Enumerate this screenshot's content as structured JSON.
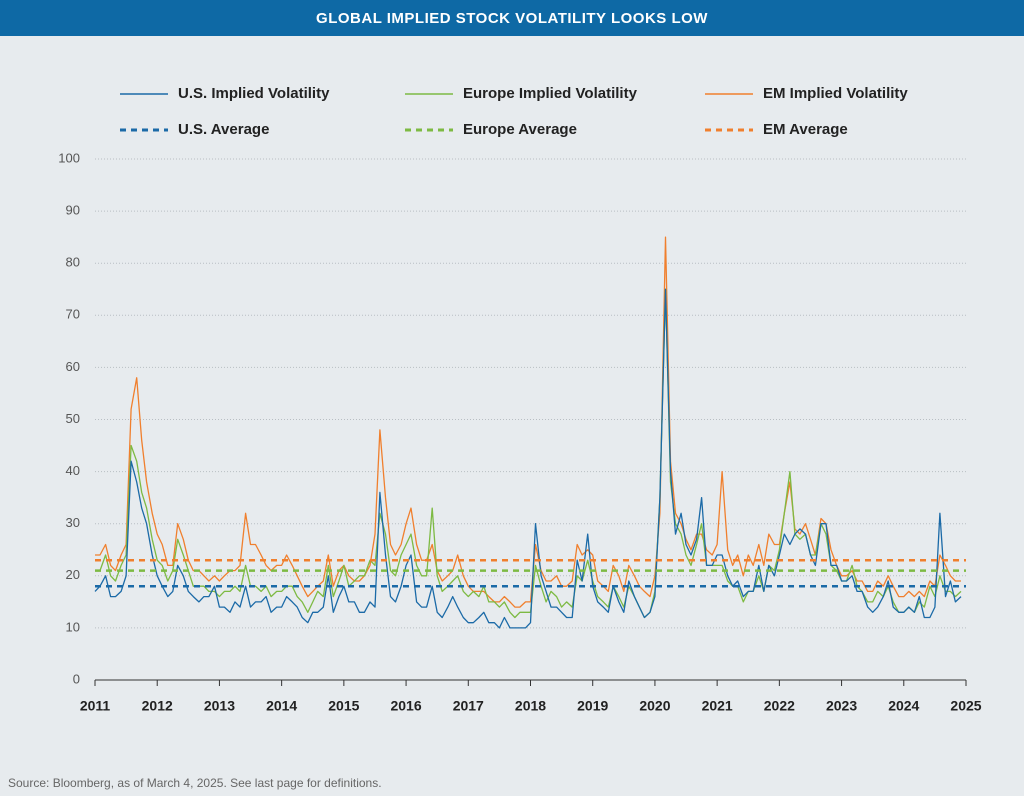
{
  "chart_data": {
    "type": "line",
    "title": "GLOBAL IMPLIED STOCK VOLATILITY LOOKS LOW",
    "source": "Source: Bloomberg, as of March 4, 2025. See last page for definitions.",
    "xlim": [
      2011,
      2025
    ],
    "xticks": [
      2011,
      2012,
      2013,
      2014,
      2015,
      2016,
      2017,
      2018,
      2019,
      2020,
      2021,
      2022,
      2023,
      2024,
      2025
    ],
    "ylim": [
      0,
      100
    ],
    "yticks": [
      0,
      10,
      20,
      30,
      40,
      50,
      60,
      70,
      80,
      90,
      100
    ],
    "grid": true,
    "x": [
      2011.0,
      2011.08,
      2011.17,
      2011.25,
      2011.33,
      2011.42,
      2011.5,
      2011.58,
      2011.67,
      2011.75,
      2011.83,
      2011.92,
      2012.0,
      2012.08,
      2012.17,
      2012.25,
      2012.33,
      2012.42,
      2012.5,
      2012.58,
      2012.67,
      2012.75,
      2012.83,
      2012.92,
      2013.0,
      2013.08,
      2013.17,
      2013.25,
      2013.33,
      2013.42,
      2013.5,
      2013.58,
      2013.67,
      2013.75,
      2013.83,
      2013.92,
      2014.0,
      2014.08,
      2014.17,
      2014.25,
      2014.33,
      2014.42,
      2014.5,
      2014.58,
      2014.67,
      2014.75,
      2014.83,
      2014.92,
      2015.0,
      2015.08,
      2015.17,
      2015.25,
      2015.33,
      2015.42,
      2015.5,
      2015.58,
      2015.67,
      2015.75,
      2015.83,
      2015.92,
      2016.0,
      2016.08,
      2016.17,
      2016.25,
      2016.33,
      2016.42,
      2016.5,
      2016.58,
      2016.67,
      2016.75,
      2016.83,
      2016.92,
      2017.0,
      2017.08,
      2017.17,
      2017.25,
      2017.33,
      2017.42,
      2017.5,
      2017.58,
      2017.67,
      2017.75,
      2017.83,
      2017.92,
      2018.0,
      2018.08,
      2018.17,
      2018.25,
      2018.33,
      2018.42,
      2018.5,
      2018.58,
      2018.67,
      2018.75,
      2018.83,
      2018.92,
      2019.0,
      2019.08,
      2019.17,
      2019.25,
      2019.33,
      2019.42,
      2019.5,
      2019.58,
      2019.67,
      2019.75,
      2019.83,
      2019.92,
      2020.0,
      2020.08,
      2020.17,
      2020.25,
      2020.33,
      2020.42,
      2020.5,
      2020.58,
      2020.67,
      2020.75,
      2020.83,
      2020.92,
      2021.0,
      2021.08,
      2021.17,
      2021.25,
      2021.33,
      2021.42,
      2021.5,
      2021.58,
      2021.67,
      2021.75,
      2021.83,
      2021.92,
      2022.0,
      2022.08,
      2022.17,
      2022.25,
      2022.33,
      2022.42,
      2022.5,
      2022.58,
      2022.67,
      2022.75,
      2022.83,
      2022.92,
      2023.0,
      2023.08,
      2023.17,
      2023.25,
      2023.33,
      2023.42,
      2023.5,
      2023.58,
      2023.67,
      2023.75,
      2023.83,
      2023.92,
      2024.0,
      2024.08,
      2024.17,
      2024.25,
      2024.33,
      2024.42,
      2024.5,
      2024.58,
      2024.67,
      2024.75,
      2024.83,
      2024.92
    ],
    "series": [
      {
        "name": "U.S. Implied Volatility",
        "color": "#1b6aa7",
        "values": [
          17,
          18,
          20,
          16,
          16,
          17,
          20,
          42,
          38,
          33,
          30,
          24,
          20,
          18,
          16,
          17,
          22,
          20,
          17,
          16,
          15,
          16,
          16,
          18,
          14,
          14,
          13,
          15,
          14,
          18,
          14,
          15,
          15,
          16,
          13,
          14,
          14,
          16,
          15,
          14,
          12,
          11,
          13,
          13,
          14,
          20,
          13,
          16,
          18,
          15,
          15,
          13,
          13,
          15,
          14,
          36,
          24,
          16,
          15,
          18,
          22,
          24,
          15,
          14,
          14,
          18,
          13,
          12,
          14,
          16,
          14,
          12,
          11,
          11,
          12,
          13,
          11,
          11,
          10,
          12,
          10,
          10,
          10,
          10,
          11,
          30,
          20,
          17,
          14,
          14,
          13,
          12,
          12,
          23,
          19,
          28,
          18,
          15,
          14,
          13,
          18,
          15,
          13,
          19,
          16,
          14,
          12,
          13,
          16,
          35,
          75,
          40,
          28,
          32,
          26,
          24,
          27,
          35,
          22,
          22,
          24,
          24,
          20,
          18,
          19,
          16,
          17,
          17,
          22,
          17,
          22,
          20,
          24,
          28,
          26,
          28,
          29,
          28,
          24,
          22,
          30,
          30,
          22,
          22,
          19,
          19,
          20,
          17,
          17,
          14,
          13,
          14,
          16,
          19,
          14,
          13,
          13,
          14,
          13,
          16,
          12,
          12,
          14,
          32,
          16,
          19,
          15,
          16
        ]
      },
      {
        "name": "Europe Implied Volatility",
        "color": "#7dba43",
        "values": [
          21,
          21,
          24,
          20,
          19,
          22,
          24,
          45,
          42,
          36,
          33,
          27,
          23,
          22,
          19,
          21,
          27,
          24,
          21,
          18,
          18,
          18,
          17,
          17,
          16,
          17,
          17,
          18,
          17,
          22,
          18,
          18,
          17,
          18,
          16,
          17,
          17,
          18,
          18,
          16,
          15,
          13,
          15,
          17,
          16,
          22,
          16,
          19,
          22,
          18,
          19,
          20,
          20,
          23,
          22,
          32,
          28,
          21,
          20,
          24,
          26,
          28,
          22,
          20,
          20,
          33,
          20,
          17,
          18,
          19,
          20,
          17,
          16,
          17,
          16,
          18,
          15,
          15,
          14,
          15,
          13,
          12,
          13,
          13,
          13,
          22,
          18,
          15,
          17,
          16,
          14,
          15,
          14,
          20,
          19,
          23,
          19,
          16,
          15,
          14,
          18,
          16,
          14,
          18,
          16,
          14,
          12,
          13,
          17,
          35,
          75,
          38,
          30,
          28,
          24,
          22,
          26,
          30,
          22,
          22,
          22,
          22,
          19,
          18,
          18,
          15,
          17,
          17,
          20,
          17,
          22,
          21,
          25,
          32,
          40,
          28,
          27,
          28,
          24,
          24,
          30,
          28,
          22,
          21,
          19,
          19,
          22,
          18,
          17,
          15,
          15,
          17,
          16,
          18,
          15,
          13,
          13,
          14,
          13,
          15,
          14,
          18,
          16,
          20,
          17,
          17,
          16,
          17
        ]
      },
      {
        "name": "EM Implied Volatility",
        "color": "#f07f2d",
        "values": [
          24,
          24,
          26,
          22,
          21,
          24,
          26,
          52,
          58,
          46,
          38,
          32,
          28,
          26,
          22,
          22,
          30,
          27,
          23,
          21,
          21,
          20,
          19,
          20,
          19,
          20,
          21,
          21,
          22,
          32,
          26,
          26,
          24,
          22,
          21,
          22,
          22,
          24,
          22,
          20,
          18,
          16,
          17,
          18,
          19,
          24,
          18,
          21,
          22,
          20,
          19,
          19,
          20,
          22,
          28,
          48,
          35,
          26,
          24,
          26,
          30,
          33,
          26,
          23,
          23,
          26,
          21,
          19,
          20,
          21,
          24,
          20,
          18,
          17,
          17,
          17,
          16,
          15,
          15,
          16,
          15,
          14,
          14,
          15,
          15,
          26,
          21,
          19,
          19,
          20,
          18,
          18,
          19,
          26,
          24,
          25,
          24,
          19,
          18,
          17,
          22,
          20,
          17,
          22,
          20,
          18,
          17,
          16,
          20,
          32,
          85,
          42,
          32,
          30,
          27,
          25,
          28,
          28,
          25,
          24,
          26,
          40,
          25,
          22,
          24,
          20,
          24,
          22,
          26,
          22,
          28,
          26,
          26,
          32,
          38,
          29,
          28,
          30,
          27,
          24,
          31,
          30,
          25,
          22,
          20,
          20,
          21,
          19,
          19,
          17,
          17,
          19,
          18,
          20,
          18,
          16,
          16,
          17,
          16,
          17,
          16,
          19,
          18,
          24,
          22,
          20,
          19,
          19
        ]
      },
      {
        "name": "U.S. Average",
        "color": "#1b6aa7",
        "dashed": true,
        "x": [
          2011,
          2025
        ],
        "values": [
          18,
          18
        ]
      },
      {
        "name": "Europe Average",
        "color": "#7dba43",
        "dashed": true,
        "x": [
          2011,
          2025
        ],
        "values": [
          21,
          21
        ]
      },
      {
        "name": "EM Average",
        "color": "#f07f2d",
        "dashed": true,
        "x": [
          2011,
          2025
        ],
        "values": [
          23,
          23
        ]
      }
    ]
  }
}
